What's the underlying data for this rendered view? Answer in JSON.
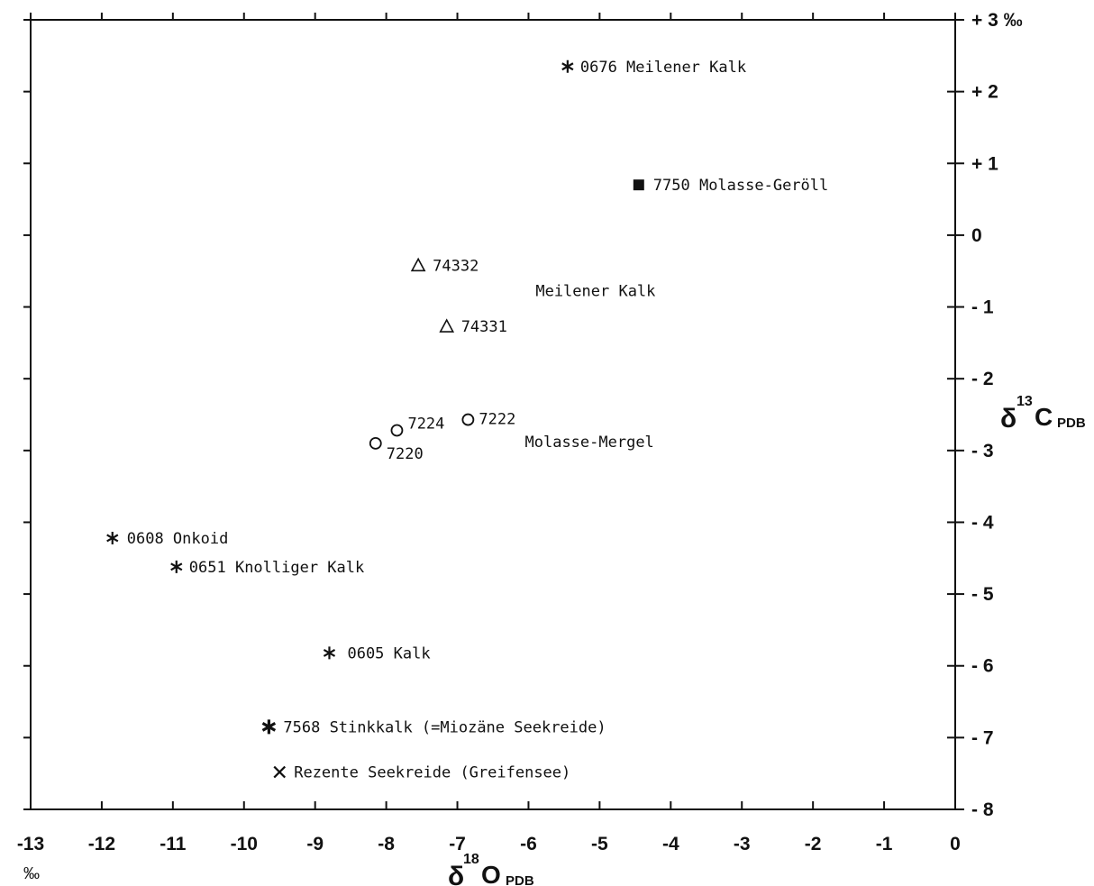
{
  "chart_data": {
    "type": "scatter",
    "x_axis": {
      "label_symbol": "δ",
      "label_sup": "18",
      "label_main": "O",
      "label_sub": "PDB",
      "unit": "‰",
      "range": [
        -13,
        0
      ],
      "ticks": [
        -13,
        -12,
        -11,
        -10,
        -9,
        -8,
        -7,
        -6,
        -5,
        -4,
        -3,
        -2,
        -1,
        0
      ],
      "tick_labels": [
        "-13",
        "-12",
        "-11",
        "-10",
        "-9",
        "-8",
        "-7",
        "-6",
        "-5",
        "-4",
        "-3",
        "-2",
        "-1",
        "0"
      ]
    },
    "y_axis": {
      "label_symbol": "δ",
      "label_sup": "13",
      "label_main": "C",
      "label_sub": "PDB",
      "position": "right",
      "range": [
        -8,
        3
      ],
      "ticks": [
        -8,
        -7,
        -6,
        -5,
        -4,
        -3,
        -2,
        -1,
        0,
        1,
        2,
        3
      ],
      "tick_labels": [
        "- 8",
        "- 7",
        "- 6",
        "- 5",
        "- 4",
        "- 3",
        "- 2",
        "- 1",
        "0",
        "+ 1",
        "+ 2",
        "+ 3 ‰"
      ]
    },
    "grid": false,
    "points": [
      {
        "label": "0676 Meilener Kalk",
        "x": -5.45,
        "y": 2.35,
        "marker": "asterisk"
      },
      {
        "label": "7750 Molasse-Geröll",
        "x": -4.45,
        "y": 0.7,
        "marker": "square"
      },
      {
        "label": "74332",
        "x": -7.55,
        "y": -0.42,
        "marker": "triangle"
      },
      {
        "label": "74331",
        "x": -7.15,
        "y": -1.27,
        "marker": "triangle"
      },
      {
        "label": "7222",
        "x": -6.85,
        "y": -2.57,
        "marker": "circle"
      },
      {
        "label": "7224",
        "x": -7.85,
        "y": -2.72,
        "marker": "circle"
      },
      {
        "label": "7220",
        "x": -8.15,
        "y": -2.9,
        "marker": "circle"
      },
      {
        "label": "0608 Onkoid",
        "x": -11.85,
        "y": -4.22,
        "marker": "asterisk"
      },
      {
        "label": "0651 Knolliger Kalk",
        "x": -10.95,
        "y": -4.62,
        "marker": "asterisk"
      },
      {
        "label": "0605 Kalk",
        "x": -8.8,
        "y": -5.82,
        "marker": "asterisk"
      },
      {
        "label": "7568 Stinkkalk (=Miozäne Seekreide)",
        "x": -9.65,
        "y": -6.85,
        "marker": "asterisk-bold"
      },
      {
        "label": "Rezente Seekreide (Greifensee)",
        "x": -9.5,
        "y": -7.48,
        "marker": "x"
      }
    ],
    "annotations": [
      {
        "text": "Meilener Kalk",
        "x": -5.9,
        "y": -0.85
      },
      {
        "text": "Molasse-Mergel",
        "x": -6.05,
        "y": -2.95
      }
    ]
  }
}
